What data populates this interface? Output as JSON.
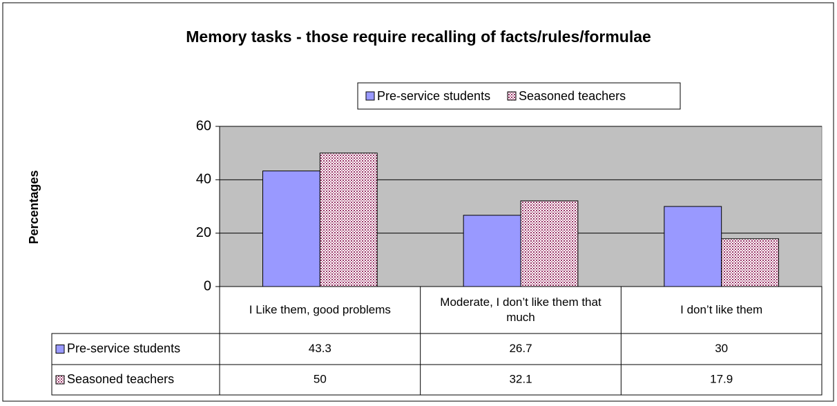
{
  "chart_data": {
    "type": "bar",
    "title": "Memory tasks - those require recalling of facts/rules/formulae",
    "y_label": "Percentages",
    "categories": [
      "I Like them, good problems",
      "Moderate, I don’t like them that much",
      "I don’t like them"
    ],
    "series": [
      {
        "name": "Pre-service students",
        "color": "#9999ff",
        "values": [
          43.3,
          26.7,
          30
        ]
      },
      {
        "name": "Seasoned teachers",
        "color": "#993366",
        "values": [
          50,
          32.1,
          17.9
        ]
      }
    ],
    "ylim": [
      0,
      60
    ],
    "yticks": [
      0,
      20,
      40,
      60
    ],
    "grid": true,
    "legend": "top",
    "data_table": true
  }
}
